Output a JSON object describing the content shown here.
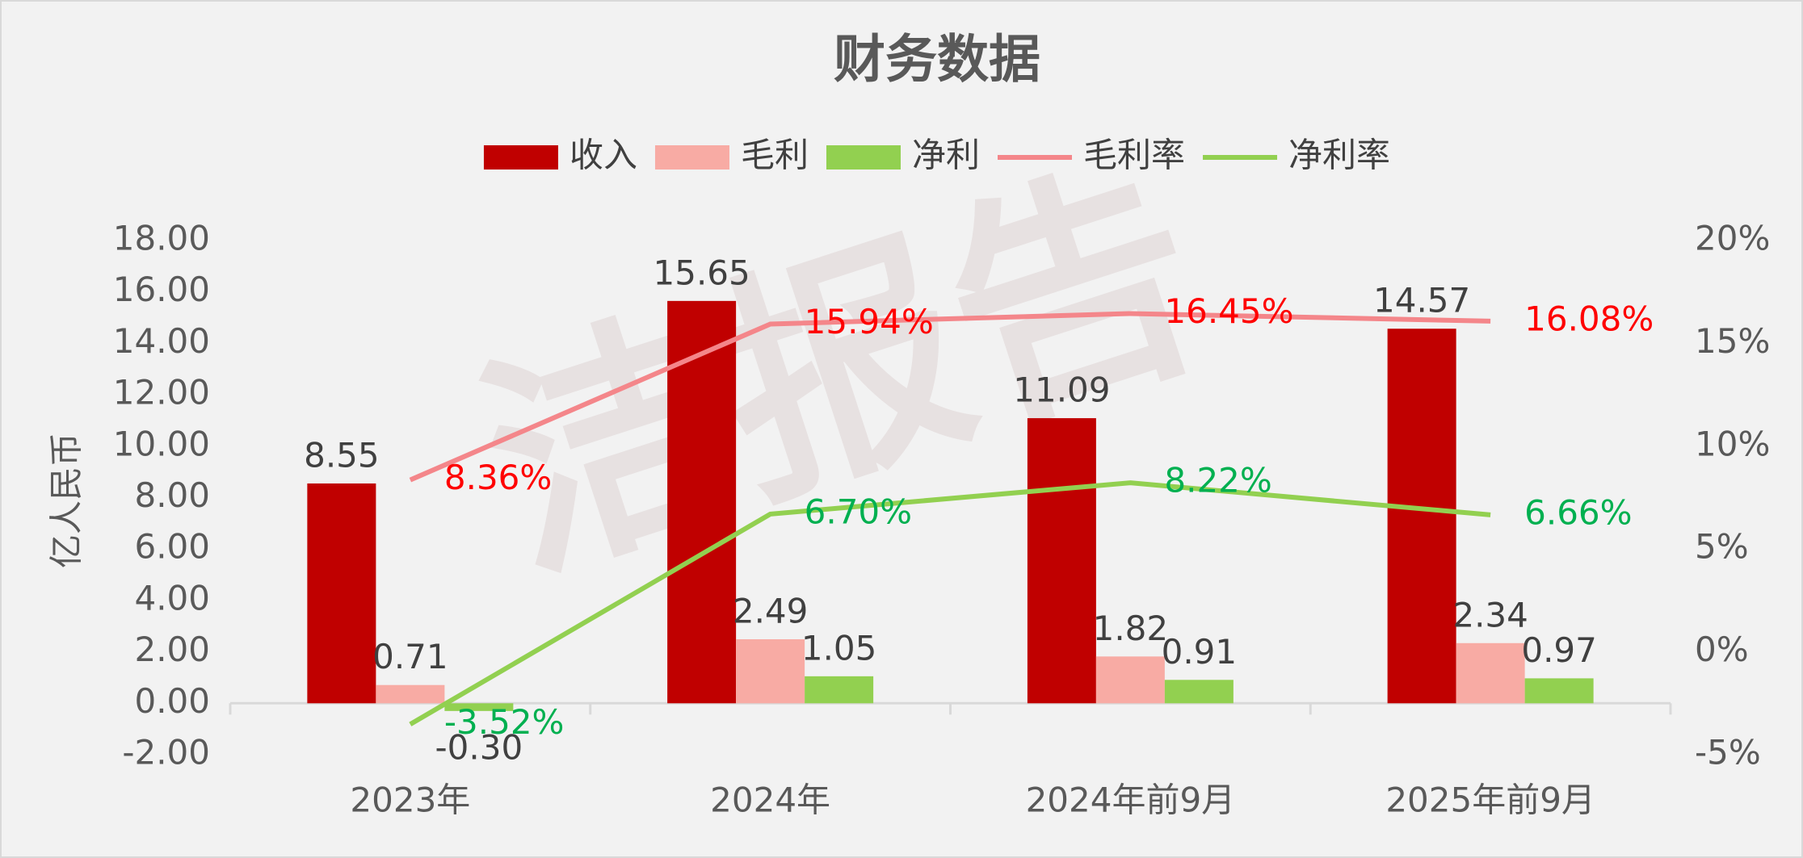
{
  "chart_data": {
    "type": "bar",
    "title": "财务数据",
    "y_label": "亿人民币",
    "watermark": "洁报告",
    "categories": [
      "2023年",
      "2024年",
      "2024年前9月",
      "2025年前9月"
    ],
    "series": [
      {
        "name": "收入",
        "kind": "bar",
        "color": "#c00000",
        "values": [
          8.55,
          15.65,
          11.09,
          14.57
        ],
        "value_labels": [
          "8.55",
          "15.65",
          "11.09",
          "14.57"
        ]
      },
      {
        "name": "毛利",
        "kind": "bar",
        "color": "#f8aba4",
        "values": [
          0.71,
          2.49,
          1.82,
          2.34
        ],
        "value_labels": [
          "0.71",
          "2.49",
          "1.82",
          "2.34"
        ]
      },
      {
        "name": "净利",
        "kind": "bar",
        "color": "#92d050",
        "values": [
          -0.3,
          1.05,
          0.91,
          0.97
        ],
        "value_labels": [
          "-0.30",
          "1.05",
          "0.91",
          "0.97"
        ]
      },
      {
        "name": "毛利率",
        "kind": "line",
        "axis": "y2",
        "color": "#f4868a",
        "label_color": "#ff0000",
        "values": [
          8.36,
          15.94,
          16.45,
          16.08
        ],
        "value_labels": [
          "8.36%",
          "15.94%",
          "16.45%",
          "16.08%"
        ]
      },
      {
        "name": "净利率",
        "kind": "line",
        "axis": "y2",
        "color": "#92d050",
        "label_color": "#00b050",
        "values": [
          -3.52,
          6.7,
          8.22,
          6.66
        ],
        "value_labels": [
          "-3.52%",
          "6.70%",
          "8.22%",
          "6.66%"
        ]
      }
    ],
    "ylim": [
      -2,
      18
    ],
    "yticks": [
      {
        "value": -2,
        "label": "-2.00"
      },
      {
        "value": 0,
        "label": "0.00"
      },
      {
        "value": 2,
        "label": "2.00"
      },
      {
        "value": 4,
        "label": "4.00"
      },
      {
        "value": 6,
        "label": "6.00"
      },
      {
        "value": 8,
        "label": "8.00"
      },
      {
        "value": 10,
        "label": "10.00"
      },
      {
        "value": 12,
        "label": "12.00"
      },
      {
        "value": 14,
        "label": "14.00"
      },
      {
        "value": 16,
        "label": "16.00"
      },
      {
        "value": 18,
        "label": "18.00"
      }
    ],
    "y2lim": [
      -5,
      20
    ],
    "y2ticks": [
      {
        "value": -5,
        "label": "-5%"
      },
      {
        "value": 0,
        "label": "0%"
      },
      {
        "value": 5,
        "label": "5%"
      },
      {
        "value": 10,
        "label": "10%"
      },
      {
        "value": 15,
        "label": "15%"
      },
      {
        "value": 20,
        "label": "20%"
      }
    ],
    "legend": "top"
  }
}
